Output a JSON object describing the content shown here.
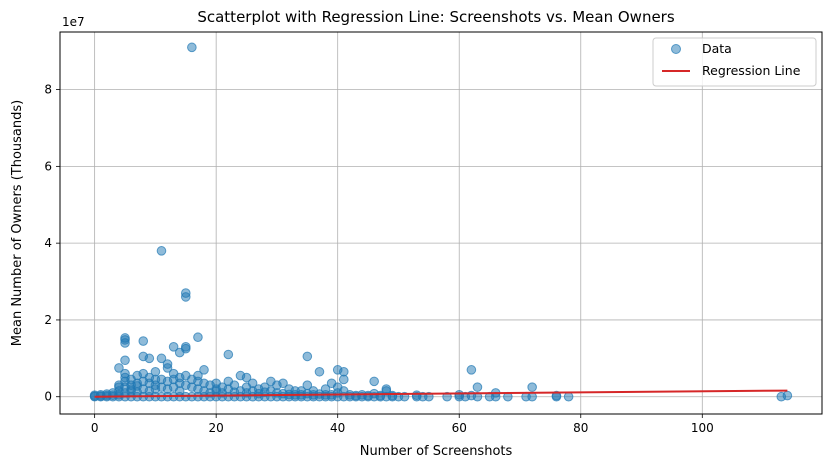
{
  "chart_data": {
    "type": "scatter",
    "title": "Scatterplot with Regression Line: Screenshots vs. Mean Owners",
    "xlabel": "Number of Screenshots",
    "ylabel": "Mean Number of Owners (Thousands)",
    "y_offset_label": "1e7",
    "xlim": [
      -5.7,
      119.7
    ],
    "ylim": [
      -4500000,
      95000000
    ],
    "x_ticks": [
      0,
      20,
      40,
      60,
      80,
      100
    ],
    "y_ticks": [
      0,
      20000000,
      40000000,
      60000000,
      80000000
    ],
    "y_tick_labels": [
      "0",
      "2",
      "4",
      "6",
      "8"
    ],
    "grid": true,
    "legend_position": "top-right",
    "colors": {
      "data": "#1f77b4",
      "regression": "#d62728"
    },
    "series": [
      {
        "name": "Data",
        "kind": "scatter",
        "points": [
          [
            0,
            0
          ],
          [
            0,
            150000
          ],
          [
            0,
            400000
          ],
          [
            1,
            0
          ],
          [
            1,
            200000
          ],
          [
            1,
            500000
          ],
          [
            2,
            0
          ],
          [
            2,
            300000
          ],
          [
            2,
            700000
          ],
          [
            3,
            0
          ],
          [
            3,
            400000
          ],
          [
            3,
            1000000
          ],
          [
            4,
            0
          ],
          [
            4,
            500000
          ],
          [
            4,
            1500000
          ],
          [
            4,
            2500000
          ],
          [
            4,
            7500000
          ],
          [
            4,
            3000000
          ],
          [
            5,
            0
          ],
          [
            5,
            1000000
          ],
          [
            5,
            2500000
          ],
          [
            5,
            4000000
          ],
          [
            5,
            6000000
          ],
          [
            5,
            9500000
          ],
          [
            5,
            14000000
          ],
          [
            5,
            14800000
          ],
          [
            5,
            15300000
          ],
          [
            5,
            5000000
          ],
          [
            6,
            0
          ],
          [
            6,
            1500000
          ],
          [
            6,
            3000000
          ],
          [
            6,
            4500000
          ],
          [
            6,
            2000000
          ],
          [
            7,
            0
          ],
          [
            7,
            1200000
          ],
          [
            7,
            2800000
          ],
          [
            7,
            5500000
          ],
          [
            7,
            3500000
          ],
          [
            8,
            0
          ],
          [
            8,
            2000000
          ],
          [
            8,
            4000000
          ],
          [
            8,
            10500000
          ],
          [
            8,
            14500000
          ],
          [
            8,
            6000000
          ],
          [
            9,
            0
          ],
          [
            9,
            1500000
          ],
          [
            9,
            3500000
          ],
          [
            9,
            10000000
          ],
          [
            9,
            5000000
          ],
          [
            10,
            0
          ],
          [
            10,
            2000000
          ],
          [
            10,
            4500000
          ],
          [
            10,
            3000000
          ],
          [
            10,
            6500000
          ],
          [
            11,
            0
          ],
          [
            11,
            2500000
          ],
          [
            11,
            10000000
          ],
          [
            11,
            38000000
          ],
          [
            11,
            4500000
          ],
          [
            12,
            0
          ],
          [
            12,
            2000000
          ],
          [
            12,
            4000000
          ],
          [
            12,
            7500000
          ],
          [
            12,
            8500000
          ],
          [
            13,
            0
          ],
          [
            13,
            2500000
          ],
          [
            13,
            4500000
          ],
          [
            13,
            13000000
          ],
          [
            13,
            6000000
          ],
          [
            14,
            0
          ],
          [
            14,
            1500000
          ],
          [
            14,
            3500000
          ],
          [
            14,
            11500000
          ],
          [
            14,
            5000000
          ],
          [
            15,
            0
          ],
          [
            15,
            3000000
          ],
          [
            15,
            12500000
          ],
          [
            15,
            13000000
          ],
          [
            15,
            26000000
          ],
          [
            15,
            27000000
          ],
          [
            15,
            5500000
          ],
          [
            16,
            0
          ],
          [
            16,
            2500000
          ],
          [
            16,
            4500000
          ],
          [
            16,
            91000000
          ],
          [
            17,
            0
          ],
          [
            17,
            2000000
          ],
          [
            17,
            5500000
          ],
          [
            17,
            15500000
          ],
          [
            17,
            4000000
          ],
          [
            18,
            0
          ],
          [
            18,
            1500000
          ],
          [
            18,
            3500000
          ],
          [
            18,
            7000000
          ],
          [
            19,
            0
          ],
          [
            19,
            1000000
          ],
          [
            19,
            3000000
          ],
          [
            20,
            0
          ],
          [
            20,
            1500000
          ],
          [
            20,
            3500000
          ],
          [
            20,
            2000000
          ],
          [
            21,
            0
          ],
          [
            21,
            1000000
          ],
          [
            21,
            2500000
          ],
          [
            22,
            0
          ],
          [
            22,
            2000000
          ],
          [
            22,
            11000000
          ],
          [
            22,
            4000000
          ],
          [
            23,
            0
          ],
          [
            23,
            1200000
          ],
          [
            23,
            3000000
          ],
          [
            24,
            0
          ],
          [
            24,
            1500000
          ],
          [
            24,
            5500000
          ],
          [
            25,
            0
          ],
          [
            25,
            1000000
          ],
          [
            25,
            2500000
          ],
          [
            25,
            5000000
          ],
          [
            26,
            0
          ],
          [
            26,
            1500000
          ],
          [
            26,
            3500000
          ],
          [
            27,
            0
          ],
          [
            27,
            800000
          ],
          [
            27,
            2000000
          ],
          [
            28,
            0
          ],
          [
            28,
            1200000
          ],
          [
            28,
            2500000
          ],
          [
            29,
            0
          ],
          [
            29,
            1500000
          ],
          [
            29,
            4000000
          ],
          [
            30,
            0
          ],
          [
            30,
            1000000
          ],
          [
            30,
            3000000
          ],
          [
            31,
            0
          ],
          [
            31,
            800000
          ],
          [
            31,
            3500000
          ],
          [
            32,
            0
          ],
          [
            32,
            600000
          ],
          [
            32,
            2000000
          ],
          [
            33,
            0
          ],
          [
            33,
            500000
          ],
          [
            33,
            1500000
          ],
          [
            34,
            0
          ],
          [
            34,
            500000
          ],
          [
            34,
            1500000
          ],
          [
            35,
            0
          ],
          [
            35,
            800000
          ],
          [
            35,
            3000000
          ],
          [
            35,
            10500000
          ],
          [
            36,
            0
          ],
          [
            36,
            500000
          ],
          [
            36,
            1500000
          ],
          [
            37,
            0
          ],
          [
            37,
            700000
          ],
          [
            37,
            6500000
          ],
          [
            38,
            0
          ],
          [
            38,
            500000
          ],
          [
            38,
            2000000
          ],
          [
            39,
            0
          ],
          [
            39,
            500000
          ],
          [
            39,
            3500000
          ],
          [
            40,
            0
          ],
          [
            40,
            1000000
          ],
          [
            40,
            7000000
          ],
          [
            40,
            2500000
          ],
          [
            41,
            0
          ],
          [
            41,
            4500000
          ],
          [
            41,
            6500000
          ],
          [
            41,
            1500000
          ],
          [
            42,
            0
          ],
          [
            42,
            500000
          ],
          [
            43,
            0
          ],
          [
            43,
            300000
          ],
          [
            44,
            0
          ],
          [
            44,
            500000
          ],
          [
            45,
            0
          ],
          [
            45,
            300000
          ],
          [
            46,
            0
          ],
          [
            46,
            4000000
          ],
          [
            46,
            800000
          ],
          [
            47,
            0
          ],
          [
            47,
            300000
          ],
          [
            48,
            0
          ],
          [
            48,
            1500000
          ],
          [
            48,
            2000000
          ],
          [
            49,
            0
          ],
          [
            49,
            300000
          ],
          [
            50,
            0
          ],
          [
            51,
            0
          ],
          [
            53,
            0
          ],
          [
            53,
            400000
          ],
          [
            54,
            0
          ],
          [
            55,
            0
          ],
          [
            58,
            0
          ],
          [
            60,
            0
          ],
          [
            60,
            500000
          ],
          [
            61,
            0
          ],
          [
            62,
            300000
          ],
          [
            62,
            7000000
          ],
          [
            63,
            2500000
          ],
          [
            63,
            0
          ],
          [
            65,
            0
          ],
          [
            66,
            0
          ],
          [
            66,
            1000000
          ],
          [
            68,
            0
          ],
          [
            71,
            0
          ],
          [
            72,
            2500000
          ],
          [
            72,
            0
          ],
          [
            76,
            0
          ],
          [
            76,
            300000
          ],
          [
            78,
            0
          ],
          [
            113,
            0
          ],
          [
            114,
            300000
          ]
        ]
      },
      {
        "name": "Regression Line",
        "kind": "line",
        "points": [
          [
            0,
            0
          ],
          [
            114,
            1600000
          ]
        ]
      }
    ]
  }
}
